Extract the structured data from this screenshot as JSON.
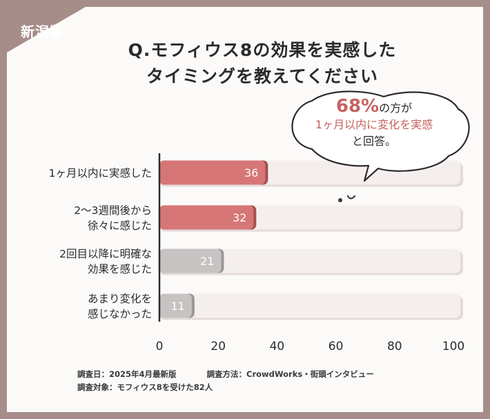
{
  "badge": "新潟版",
  "title_lines": [
    "Q.モフィウス8の効果を実感した",
    "タイミングを教えてください"
  ],
  "callout": {
    "percent": "68%",
    "text1": "の方が",
    "text2": "1ヶ月以内に変化を実感",
    "text3": "と回答。"
  },
  "footer": {
    "date": "調査日：2025年4月最新版",
    "method": "調査方法：CrowdWorks・街頭インタビュー",
    "subject": "調査対象：モフィウス8を受けた82人"
  },
  "colors": {
    "frame": "#a68d89",
    "highlight": "#d77676",
    "highlight_shadow": "#a84f4f",
    "muted": "#c6c3c2",
    "muted_shadow": "#9a9797",
    "track": "#f4efee",
    "track_shadow": "#e3dbda",
    "accent_text": "#c76161"
  },
  "chart_data": {
    "type": "bar",
    "orientation": "horizontal",
    "categories": [
      [
        "1ヶ月以内に実感した"
      ],
      [
        "2〜3週間後から",
        "徐々に感じた"
      ],
      [
        "2回目以降に明確な",
        "効果を感じた"
      ],
      [
        "あまり変化を",
        "感じなかった"
      ]
    ],
    "values": [
      36,
      32,
      21,
      11
    ],
    "xlim": [
      0,
      100
    ],
    "xticks": [
      0,
      20,
      40,
      60,
      80,
      100
    ],
    "highlighted": [
      true,
      true,
      false,
      false
    ],
    "grid": false,
    "legend": "none"
  }
}
